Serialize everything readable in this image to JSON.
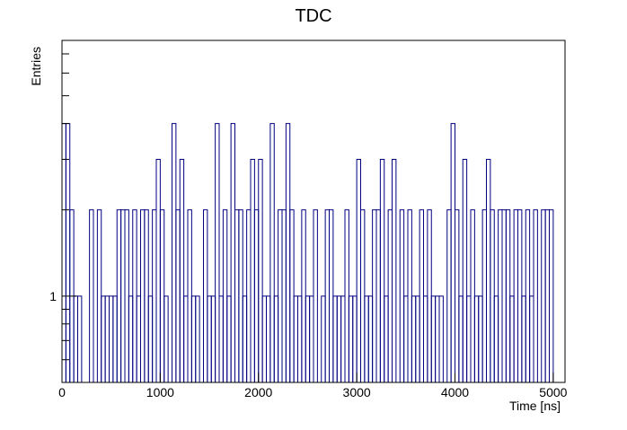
{
  "chart_data": {
    "type": "histogram",
    "title": "TDC",
    "xlabel": "Time [ns]",
    "ylabel": "Entries",
    "color": "#000080",
    "log_y": true,
    "bins": [
      0,
      40,
      80,
      120,
      160,
      200,
      240,
      280,
      320,
      360,
      400,
      440,
      480,
      520,
      560,
      600,
      640,
      680,
      720,
      760,
      800,
      840,
      880,
      920,
      960,
      1000,
      1040,
      1080,
      1120,
      1160,
      1200,
      1240,
      1280,
      1320,
      1360,
      1400,
      1440,
      1480,
      1520,
      1560,
      1600,
      1640,
      1680,
      1720,
      1760,
      1800,
      1840,
      1880,
      1920,
      1960,
      2000,
      2040,
      2080,
      2120,
      2160,
      2200,
      2240,
      2280,
      2320,
      2360,
      2400,
      2440,
      2480,
      2520,
      2560,
      2600,
      2640,
      2680,
      2720,
      2760,
      2800,
      2840,
      2880,
      2920,
      2960,
      3000,
      3040,
      3080,
      3120,
      3160,
      3200,
      3240,
      3280,
      3320,
      3360,
      3400,
      3440,
      3480,
      3520,
      3560,
      3600,
      3640,
      3680,
      3720,
      3760,
      3800,
      3840,
      3880,
      3920,
      3960,
      4000,
      4040,
      4080,
      4120,
      4160,
      4200,
      4240,
      4280,
      4320,
      4360,
      4400,
      4440,
      4480,
      4520,
      4560,
      4600,
      4640,
      4680,
      4720,
      4760,
      4800,
      4840,
      4880,
      4920,
      4960,
      5000,
      5040,
      5080,
      5120
    ],
    "values": [
      4,
      4,
      2,
      1,
      1,
      0,
      0,
      2,
      0,
      2,
      1,
      1,
      1,
      1,
      2,
      2,
      2,
      1,
      2,
      1,
      2,
      2,
      1,
      2,
      3,
      2,
      1,
      0,
      4,
      2,
      3,
      1,
      2,
      1,
      1,
      0,
      2,
      1,
      1,
      4,
      1,
      2,
      1,
      4,
      2,
      2,
      1,
      2,
      3,
      2,
      3,
      1,
      1,
      4,
      1,
      2,
      2,
      4,
      2,
      1,
      1,
      2,
      1,
      1,
      2,
      0,
      1,
      2,
      2,
      1,
      1,
      1,
      2,
      1,
      1,
      3,
      2,
      1,
      1,
      2,
      2,
      3,
      1,
      2,
      3,
      0,
      2,
      1,
      2,
      1,
      1,
      2,
      1,
      2,
      1,
      1,
      1,
      0,
      2,
      4,
      2,
      1,
      3,
      1,
      2,
      1,
      1,
      2,
      3,
      2,
      1,
      2,
      2,
      2,
      1,
      2,
      2,
      1,
      2,
      1,
      2,
      0,
      2,
      2,
      2,
      0,
      0,
      0
    ],
    "xlim": [
      0,
      5120
    ],
    "xticks": [
      0,
      1000,
      2000,
      3000,
      4000,
      5000
    ],
    "ylim": [
      0.5,
      7.8
    ],
    "yticks": [
      1
    ],
    "yminorticks": [
      0.6,
      0.7,
      0.8,
      0.9,
      2,
      3,
      4,
      5,
      6,
      7
    ]
  }
}
